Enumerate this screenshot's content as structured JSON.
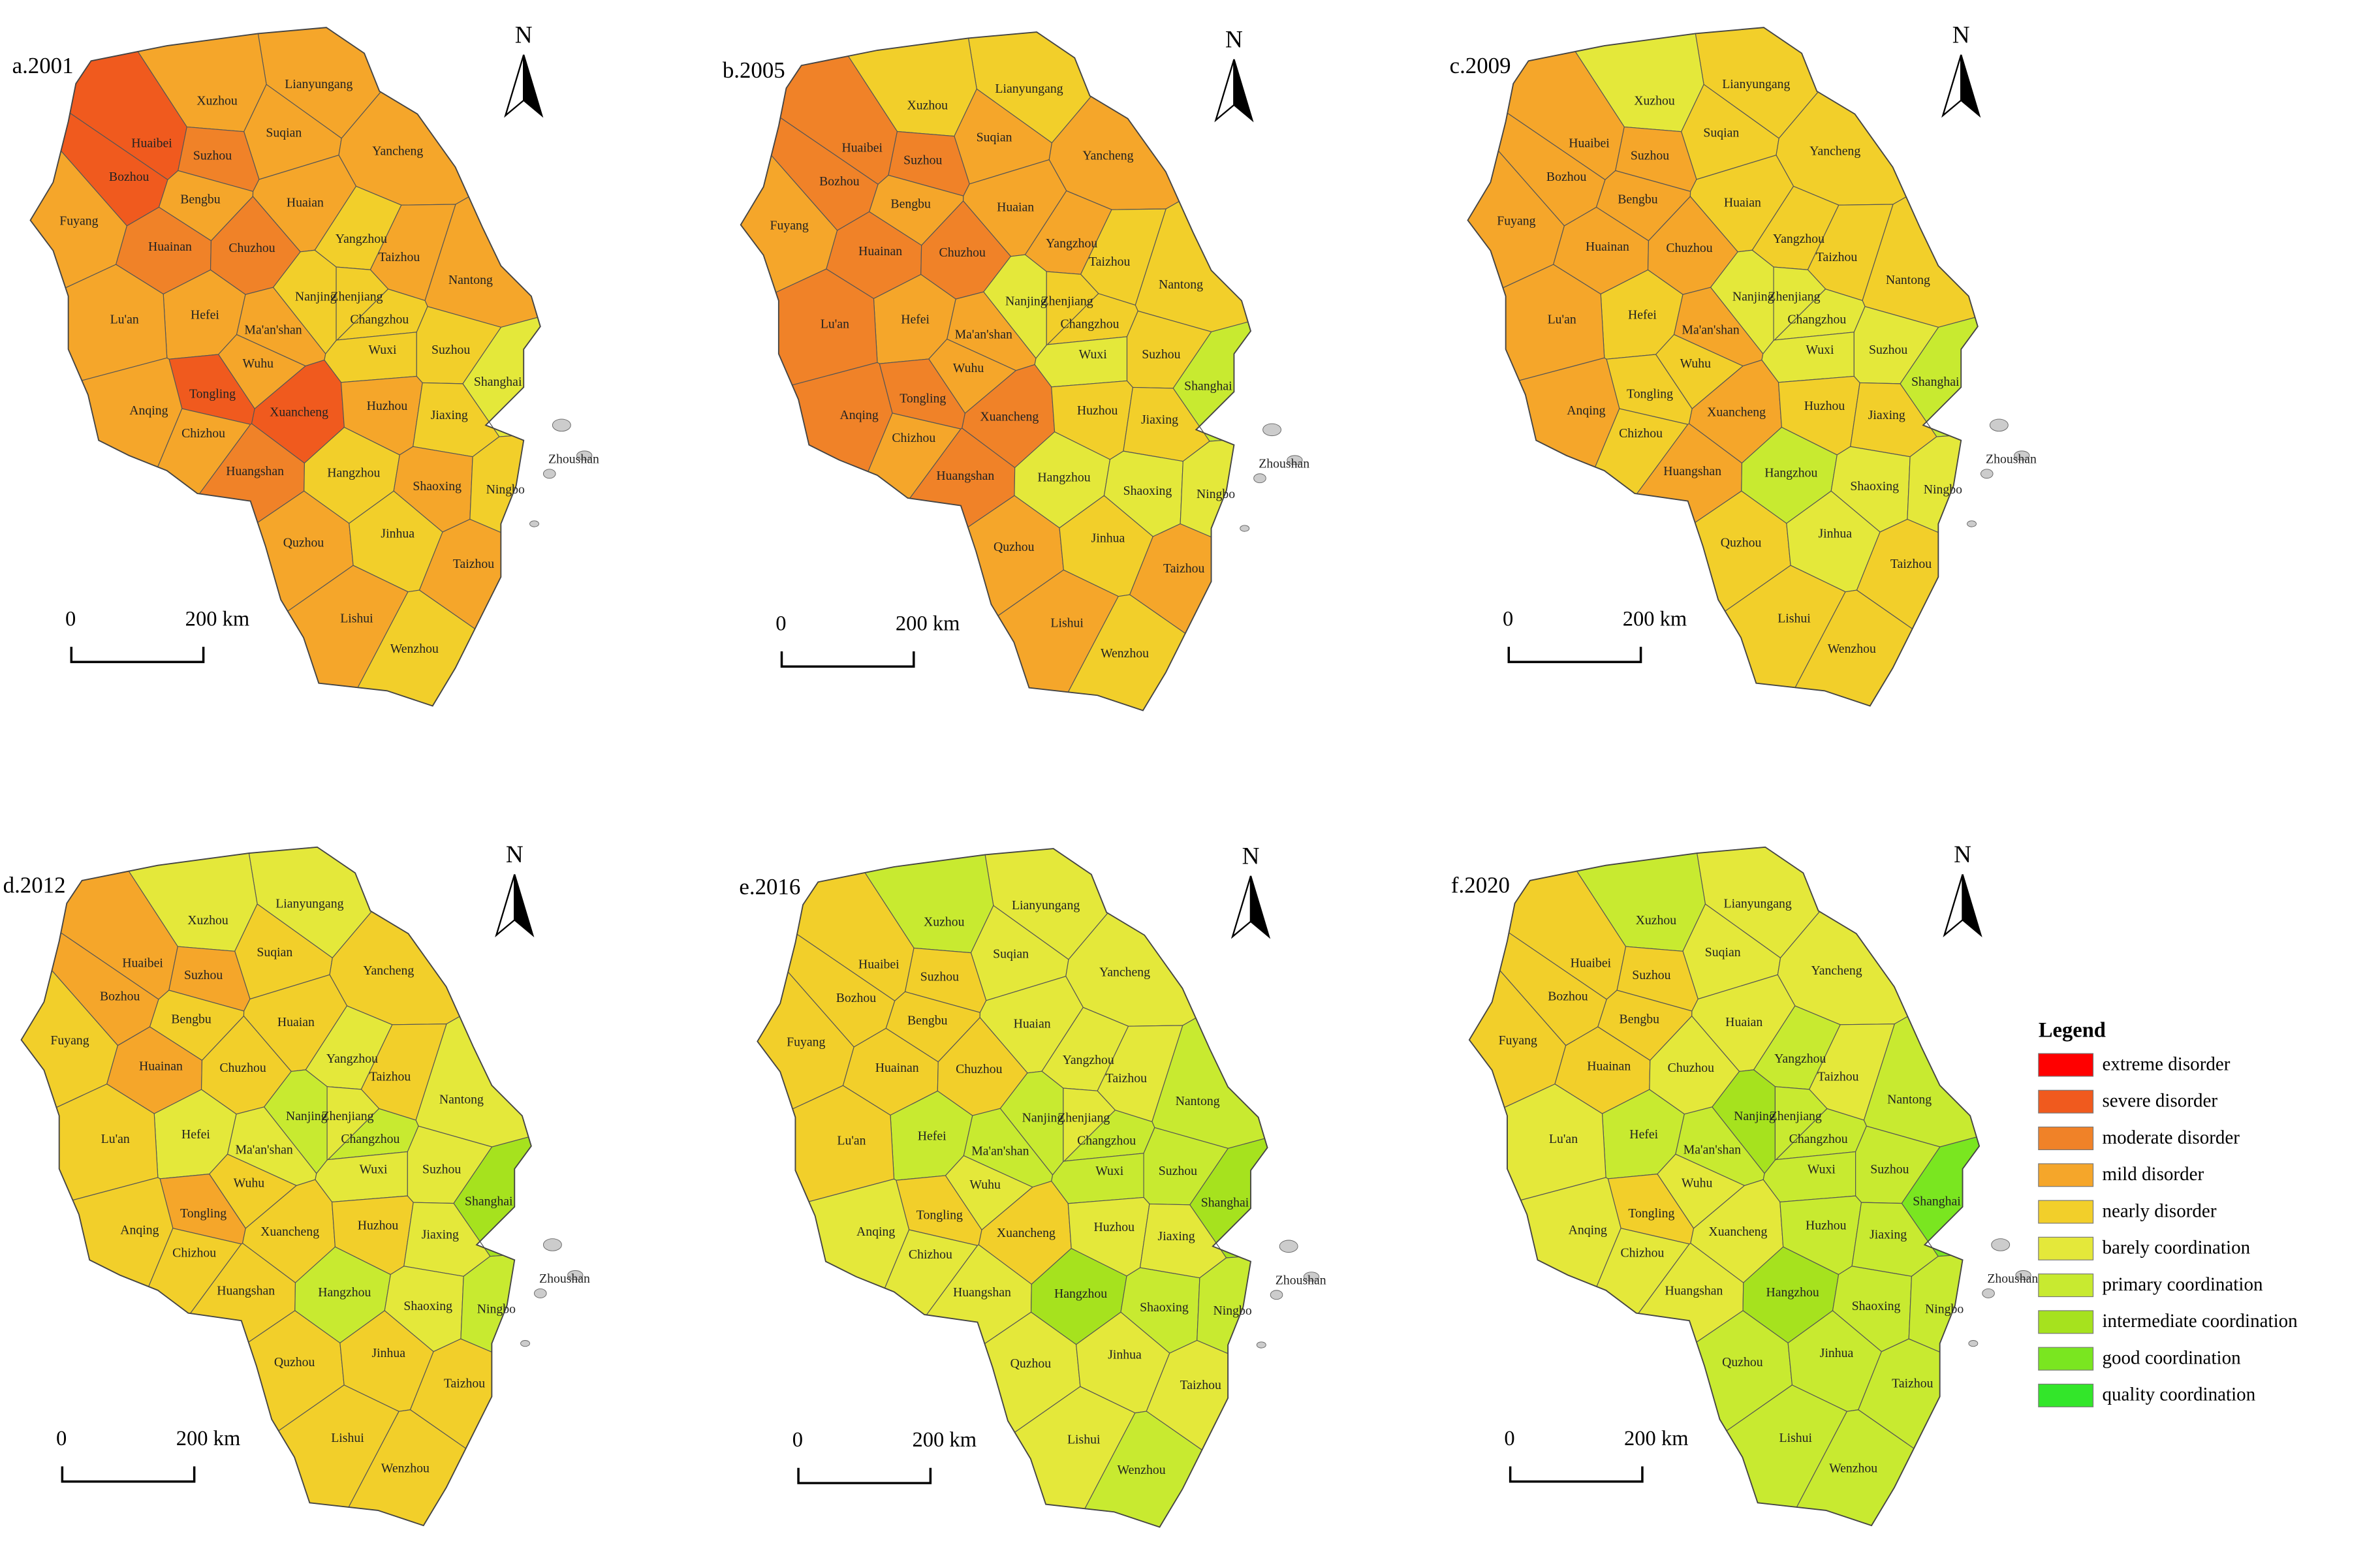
{
  "legend": {
    "title": "Legend",
    "items": [
      {
        "label": "extreme disorder",
        "color": "#ff0000"
      },
      {
        "label": "severe disorder",
        "color": "#f05a1e"
      },
      {
        "label": "moderate disorder",
        "color": "#f08228"
      },
      {
        "label": "mild disorder",
        "color": "#f5a62a"
      },
      {
        "label": "nearly disorder",
        "color": "#f2cf2a"
      },
      {
        "label": "barely coordination",
        "color": "#e4e83a"
      },
      {
        "label": "primary coordination",
        "color": "#c8ea30"
      },
      {
        "label": "intermediate coordination",
        "color": "#a6e21e"
      },
      {
        "label": "good coordination",
        "color": "#7ae620"
      },
      {
        "label": "quality coordination",
        "color": "#33e62a"
      }
    ]
  },
  "north": "N",
  "scale": [
    "0",
    "200 km"
  ],
  "cities": [
    "Lianyungang",
    "Xuzhou",
    "Suqian",
    "Huaibei",
    "Suzhou",
    "Yancheng",
    "Bozhou",
    "Bengbu",
    "Huaian",
    "Fuyang",
    "Huainan",
    "Chuzhou",
    "Yangzhou",
    "Taizhou",
    "Nantong",
    "Nanjing",
    "Zhenjiang",
    "Hefei",
    "Ma'an'shan",
    "Changzhou",
    "Lu'an",
    "Wuxi",
    "Suzhou",
    "Wuhu",
    "Shanghai",
    "Tongling",
    "Xuancheng",
    "Huzhou",
    "Anqing",
    "Jiaxing",
    "Chizhou",
    "Zhoushan",
    "Huangshan",
    "Hangzhou",
    "Shaoxing",
    "Ningbo",
    "Quzhou",
    "Jinhua",
    "Taizhou",
    "Lishui",
    "Wenzhou"
  ],
  "panels": [
    {
      "title": "a.2001",
      "colors": [
        "#f5a62a",
        "#f5a62a",
        "#f5a62a",
        "#f05a1e",
        "#f08228",
        "#f5a62a",
        "#f05a1e",
        "#f5a62a",
        "#f5a62a",
        "#f5a62a",
        "#f08228",
        "#f08228",
        "#f2cf2a",
        "#f5a62a",
        "#f5a62a",
        "#f2cf2a",
        "#f2cf2a",
        "#f5a62a",
        "#f5a62a",
        "#f2cf2a",
        "#f5a62a",
        "#f2cf2a",
        "#f2cf2a",
        "#f5a62a",
        "#e4e83a",
        "#f05a1e",
        "#f05a1e",
        "#f5a62a",
        "#f5a62a",
        "#f2cf2a",
        "#f5a62a",
        "#f2cf2a",
        "#f08228",
        "#f2cf2a",
        "#f5a62a",
        "#f2cf2a",
        "#f5a62a",
        "#f2cf2a",
        "#f5a62a",
        "#f5a62a",
        "#f2cf2a"
      ]
    },
    {
      "title": "b.2005",
      "colors": [
        "#f2cf2a",
        "#f2cf2a",
        "#f5a62a",
        "#f08228",
        "#f08228",
        "#f5a62a",
        "#f08228",
        "#f5a62a",
        "#f5a62a",
        "#f5a62a",
        "#f08228",
        "#f08228",
        "#f5a62a",
        "#f2cf2a",
        "#f2cf2a",
        "#e4e83a",
        "#f2cf2a",
        "#f5a62a",
        "#f5a62a",
        "#f2cf2a",
        "#f08228",
        "#e4e83a",
        "#f2cf2a",
        "#f5a62a",
        "#c8ea30",
        "#f08228",
        "#f08228",
        "#f2cf2a",
        "#f08228",
        "#f2cf2a",
        "#f5a62a",
        "#f2cf2a",
        "#f08228",
        "#e4e83a",
        "#e4e83a",
        "#e4e83a",
        "#f5a62a",
        "#f2cf2a",
        "#f5a62a",
        "#f5a62a",
        "#f2cf2a"
      ]
    },
    {
      "title": "c.2009",
      "colors": [
        "#f2cf2a",
        "#e4e83a",
        "#f2cf2a",
        "#f5a62a",
        "#f5a62a",
        "#f2cf2a",
        "#f5a62a",
        "#f5a62a",
        "#f2cf2a",
        "#f5a62a",
        "#f5a62a",
        "#f5a62a",
        "#f2cf2a",
        "#f2cf2a",
        "#f2cf2a",
        "#e4e83a",
        "#e4e83a",
        "#f2cf2a",
        "#f5a62a",
        "#e4e83a",
        "#f5a62a",
        "#e4e83a",
        "#e4e83a",
        "#f2cf2a",
        "#c8ea30",
        "#f2cf2a",
        "#f5a62a",
        "#f2cf2a",
        "#f5a62a",
        "#f2cf2a",
        "#f2cf2a",
        "#e4e83a",
        "#f5a62a",
        "#c8ea30",
        "#e4e83a",
        "#e4e83a",
        "#f2cf2a",
        "#e4e83a",
        "#f2cf2a",
        "#f2cf2a",
        "#f2cf2a"
      ]
    },
    {
      "title": "d.2012",
      "colors": [
        "#e4e83a",
        "#e4e83a",
        "#f2cf2a",
        "#f5a62a",
        "#f5a62a",
        "#f2cf2a",
        "#f5a62a",
        "#f2cf2a",
        "#f2cf2a",
        "#f2cf2a",
        "#f5a62a",
        "#f2cf2a",
        "#e4e83a",
        "#f2cf2a",
        "#e4e83a",
        "#c8ea30",
        "#e4e83a",
        "#e4e83a",
        "#e4e83a",
        "#c8ea30",
        "#f2cf2a",
        "#e4e83a",
        "#e4e83a",
        "#f2cf2a",
        "#a6e21e",
        "#f5a62a",
        "#f2cf2a",
        "#f2cf2a",
        "#f2cf2a",
        "#e4e83a",
        "#f2cf2a",
        "#e4e83a",
        "#f2cf2a",
        "#c8ea30",
        "#e4e83a",
        "#c8ea30",
        "#f2cf2a",
        "#f2cf2a",
        "#f2cf2a",
        "#f2cf2a",
        "#f2cf2a"
      ]
    },
    {
      "title": "e.2016",
      "colors": [
        "#e4e83a",
        "#c8ea30",
        "#e4e83a",
        "#f2cf2a",
        "#f2cf2a",
        "#e4e83a",
        "#f2cf2a",
        "#f2cf2a",
        "#e4e83a",
        "#f2cf2a",
        "#f2cf2a",
        "#f2cf2a",
        "#e4e83a",
        "#e4e83a",
        "#c8ea30",
        "#c8ea30",
        "#e4e83a",
        "#c8ea30",
        "#c8ea30",
        "#c8ea30",
        "#f2cf2a",
        "#c8ea30",
        "#c8ea30",
        "#e4e83a",
        "#a6e21e",
        "#f2cf2a",
        "#f2cf2a",
        "#e4e83a",
        "#e4e83a",
        "#e4e83a",
        "#e4e83a",
        "#e4e83a",
        "#e4e83a",
        "#a6e21e",
        "#c8ea30",
        "#c8ea30",
        "#e4e83a",
        "#e4e83a",
        "#e4e83a",
        "#e4e83a",
        "#c8ea30"
      ]
    },
    {
      "title": "f.2020",
      "colors": [
        "#e4e83a",
        "#c8ea30",
        "#e4e83a",
        "#f2cf2a",
        "#f2cf2a",
        "#e4e83a",
        "#f2cf2a",
        "#f2cf2a",
        "#e4e83a",
        "#f2cf2a",
        "#f2cf2a",
        "#e4e83a",
        "#c8ea30",
        "#e4e83a",
        "#c8ea30",
        "#a6e21e",
        "#c8ea30",
        "#c8ea30",
        "#c8ea30",
        "#c8ea30",
        "#e4e83a",
        "#c8ea30",
        "#c8ea30",
        "#e4e83a",
        "#7ae620",
        "#f2cf2a",
        "#e4e83a",
        "#c8ea30",
        "#e4e83a",
        "#c8ea30",
        "#e4e83a",
        "#c8ea30",
        "#e4e83a",
        "#a6e21e",
        "#c8ea30",
        "#c8ea30",
        "#c8ea30",
        "#c8ea30",
        "#c8ea30",
        "#c8ea30",
        "#c8ea30"
      ]
    }
  ]
}
